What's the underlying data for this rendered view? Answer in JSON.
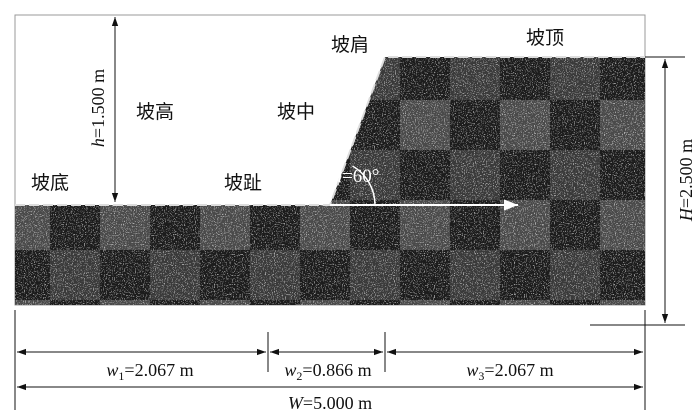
{
  "labels": {
    "crest": "坡肩",
    "top": "坡顶",
    "height": "坡高",
    "middle": "坡中",
    "bottom": "坡底",
    "toe": "坡趾"
  },
  "angle": {
    "symbol": "a",
    "text": "=60°"
  },
  "slope_height": {
    "symbol": "h",
    "text": "=1.500 m"
  },
  "total_height": {
    "symbol": "H",
    "text": "=2.500 m"
  },
  "widths": [
    {
      "symbol": "w",
      "subscript": "1",
      "text": "=2.067 m"
    },
    {
      "symbol": "w",
      "subscript": "2",
      "text": "=0.866 m"
    },
    {
      "symbol": "w",
      "subscript": "3",
      "text": "=2.067 m"
    }
  ],
  "total_width": {
    "symbol": "W",
    "text": "=5.000 m"
  }
}
